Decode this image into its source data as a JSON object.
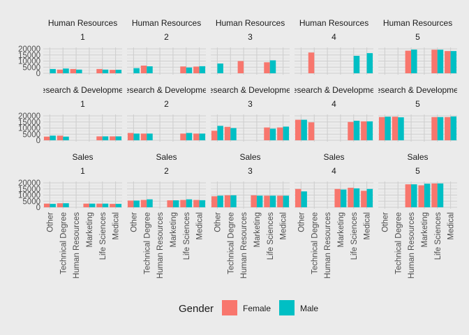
{
  "chart_data": {
    "type": "bar",
    "facet_rows": [
      "Human Resources",
      "Research & Development",
      "Sales"
    ],
    "facet_cols": [
      "1",
      "2",
      "3",
      "4",
      "5"
    ],
    "categories": [
      "Other",
      "Technical Degree",
      "Human Resources",
      "Marketing",
      "Life Sciences",
      "Medical"
    ],
    "yticks": [
      0,
      5000,
      10000,
      15000,
      20000
    ],
    "ylim": [
      0,
      20000
    ],
    "grid": true,
    "legend": {
      "title": "Gender",
      "position": "bottom",
      "entries": [
        {
          "name": "Female",
          "color": "#F8766D"
        },
        {
          "name": "Male",
          "color": "#00BFC4"
        }
      ]
    },
    "panels": [
      [
        {
          "Female": [
            null,
            null,
            null,
            null,
            null,
            null
          ],
          "Male": [
            3500,
            null,
            null,
            null,
            null,
            null
          ],
          "F": [
            null,
            3000,
            3500,
            null,
            3500,
            2800
          ],
          "M": [
            null,
            3900,
            3000,
            null,
            3000,
            2900
          ]
        },
        {
          "Female": [
            null,
            null,
            null,
            null,
            null,
            null
          ],
          "Male": [
            4200,
            null,
            null,
            null,
            null,
            null
          ],
          "F": [
            null,
            6300,
            null,
            null,
            5600,
            5500
          ],
          "M": [
            null,
            5700,
            null,
            null,
            4700,
            5800
          ]
        },
        {
          "Female": [
            null,
            null,
            null,
            null,
            null,
            null
          ],
          "Male": [
            8000,
            null,
            null,
            null,
            null,
            null
          ],
          "F": [
            null,
            null,
            10000,
            null,
            9000,
            null
          ],
          "M": [
            null,
            null,
            null,
            null,
            10600,
            null
          ]
        },
        {
          "Female": [
            null,
            null,
            null,
            null,
            null,
            null
          ],
          "Male": [
            null,
            null,
            null,
            null,
            null,
            null
          ],
          "F": [
            null,
            17000,
            null,
            null,
            null,
            null
          ],
          "M": [
            null,
            null,
            null,
            null,
            14300,
            16500
          ]
        },
        {
          "Female": [
            null,
            null,
            null,
            null,
            null,
            null
          ],
          "Male": [
            null,
            null,
            null,
            null,
            null,
            null
          ],
          "F": [
            null,
            null,
            18500,
            null,
            19300,
            18200
          ],
          "M": [
            null,
            null,
            19400,
            null,
            19300,
            18200
          ]
        }
      ],
      [
        {
          "F": [
            3000,
            3800,
            null,
            null,
            3200,
            3200
          ],
          "M": [
            3800,
            3000,
            null,
            null,
            3200,
            3200
          ]
        },
        {
          "F": [
            6000,
            5500,
            null,
            null,
            5500,
            5500
          ],
          "M": [
            5500,
            5500,
            null,
            null,
            6000,
            5500
          ]
        },
        {
          "F": [
            7800,
            11000,
            null,
            null,
            10500,
            10500
          ],
          "M": [
            11800,
            10000,
            null,
            null,
            9500,
            11200
          ]
        },
        {
          "F": [
            16800,
            14700,
            null,
            null,
            15000,
            15500
          ],
          "M": [
            16800,
            null,
            null,
            null,
            16000,
            15500
          ]
        },
        {
          "F": [
            19000,
            19300,
            null,
            null,
            19000,
            19000
          ],
          "M": [
            19300,
            18800,
            null,
            null,
            19000,
            19500
          ]
        }
      ],
      [
        {
          "F": [
            3000,
            3300,
            null,
            3000,
            3000,
            2800
          ],
          "M": [
            2800,
            3300,
            null,
            3000,
            3000,
            2800
          ]
        },
        {
          "F": [
            5500,
            6000,
            null,
            5700,
            6000,
            6000
          ],
          "M": [
            5500,
            6500,
            null,
            5700,
            6500,
            5800
          ]
        },
        {
          "F": [
            9000,
            9800,
            null,
            9800,
            9500,
            9500
          ],
          "M": [
            9500,
            9800,
            null,
            9500,
            9500,
            9500
          ]
        },
        {
          "F": [
            15000,
            null,
            null,
            15000,
            16000,
            13500
          ],
          "M": [
            13000,
            null,
            null,
            14500,
            15500,
            15000
          ]
        },
        {
          "F": [
            null,
            null,
            18800,
            18000,
            19500,
            null
          ],
          "M": [
            null,
            null,
            18800,
            19300,
            19500,
            null
          ]
        }
      ]
    ],
    "series": [
      {
        "name": "Female"
      },
      {
        "name": "Male"
      }
    ]
  }
}
